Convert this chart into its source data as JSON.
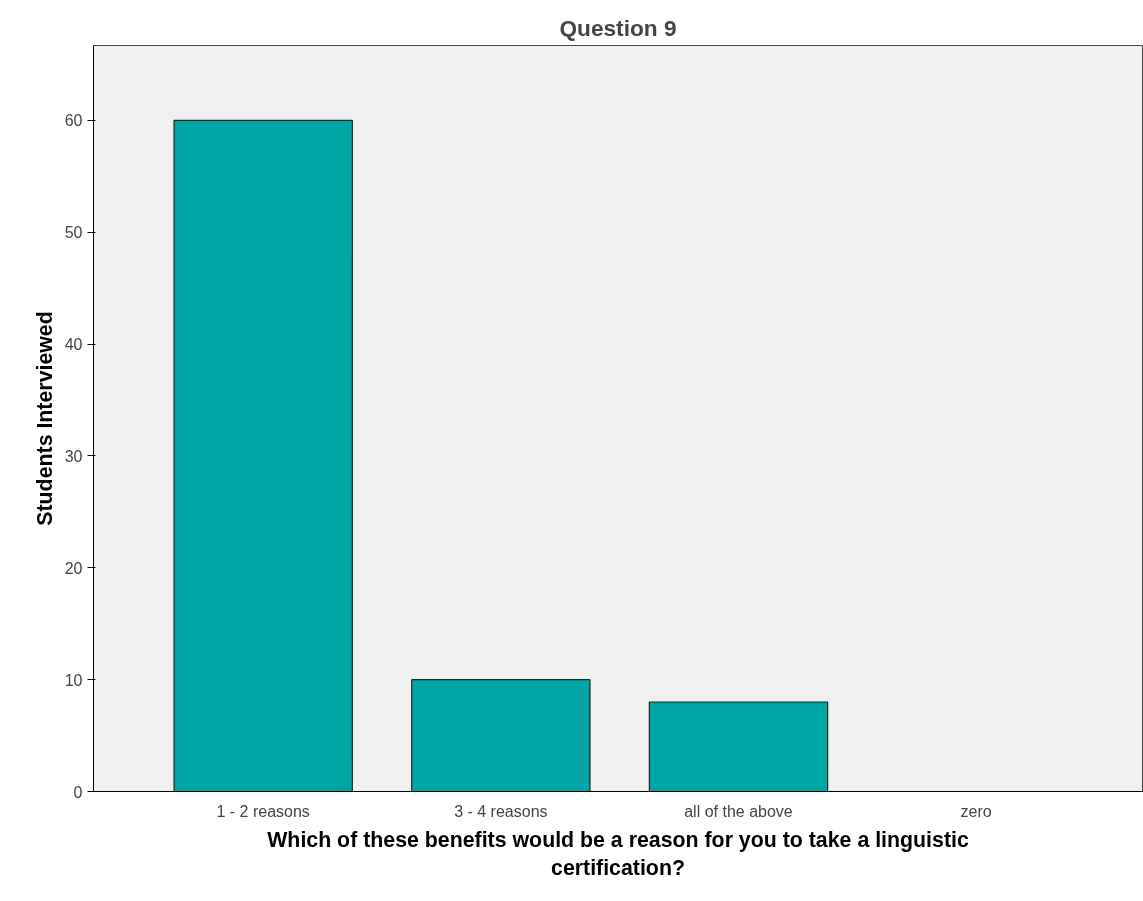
{
  "chart_data": {
    "type": "bar",
    "title": "Question 9",
    "xlabel": "Which of these benefits would be a reason for you to take a linguistic certification?",
    "ylabel": "Students Interviewed",
    "categories": [
      "1 - 2 reasons",
      "3 - 4 reasons",
      "all of the above",
      "zero"
    ],
    "values": [
      60,
      10,
      8,
      0
    ],
    "color": "#00a6a6",
    "ylim": [
      0,
      66.7
    ],
    "yticks": [
      0,
      10,
      20,
      30,
      40,
      50,
      60
    ],
    "grid": false
  }
}
